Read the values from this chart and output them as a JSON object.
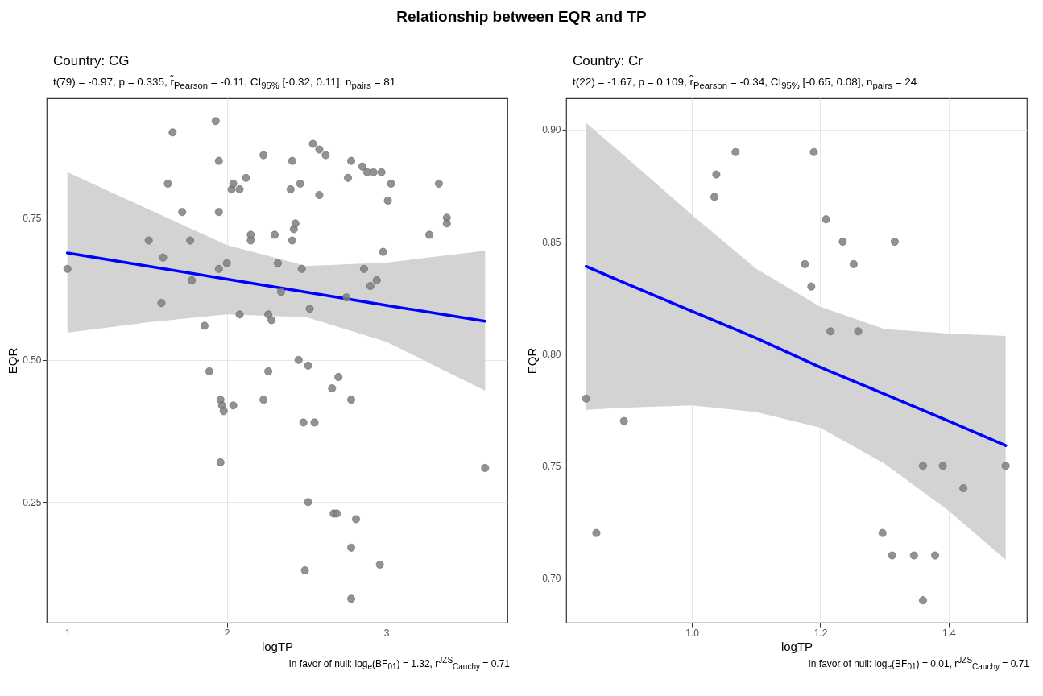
{
  "chart_data": [
    {
      "type": "scatter",
      "title": "Country: CG",
      "subtitle": "t(79) = -0.97, p = 0.335, r̂$_{Pearson}$ = -0.11, CI$_{95%}$ [-0.32, 0.11], n$_{pairs}$ = 81",
      "xlabel": "logTP",
      "ylabel": "EQR",
      "annotations": [
        "Relationship between EQR and TP",
        "In favor of null: log$_{e}$(BF$_{01}$) = 1.32, r$^{JZS}$$_{Cauchy}$ = 0.71"
      ],
      "xlim": [
        0.87,
        3.76
      ],
      "ylim": [
        0.038,
        0.96
      ],
      "xticks": [
        1,
        2,
        3
      ],
      "yticks": [
        {
          "value": 0.25,
          "label": "0.25"
        },
        {
          "value": 0.5,
          "label": "0.50"
        },
        {
          "value": 0.75,
          "label": "0.75"
        }
      ],
      "grid": true,
      "series": [
        {
          "marker": "circle",
          "color": "#808080",
          "x": [
            1.0,
            1.51,
            1.6,
            1.59,
            1.66,
            1.63,
            1.72,
            1.77,
            1.78,
            1.86,
            1.89,
            1.93,
            1.95,
            1.95,
            1.95,
            1.96,
            1.97,
            1.98,
            1.96,
            2.0,
            2.03,
            2.04,
            2.04,
            2.08,
            2.12,
            2.08,
            2.15,
            2.15,
            2.23,
            2.23,
            2.26,
            2.26,
            2.28,
            2.3,
            2.32,
            2.34,
            2.4,
            2.41,
            2.41,
            2.42,
            2.43,
            2.46,
            2.45,
            2.47,
            2.48,
            2.49,
            2.51,
            2.51,
            2.52,
            2.54,
            2.55,
            2.58,
            2.58,
            2.62,
            2.66,
            2.67,
            2.69,
            2.7,
            2.75,
            2.76,
            2.78,
            2.78,
            2.78,
            2.78,
            2.81,
            2.85,
            2.86,
            2.88,
            2.9,
            2.92,
            2.94,
            2.97,
            2.96,
            2.98,
            3.01,
            3.03,
            3.27,
            3.33,
            3.38,
            3.38,
            3.62
          ],
          "values": [
            0.66,
            0.71,
            0.68,
            0.6,
            0.9,
            0.81,
            0.76,
            0.71,
            0.64,
            0.56,
            0.48,
            0.92,
            0.85,
            0.76,
            0.66,
            0.43,
            0.42,
            0.41,
            0.32,
            0.67,
            0.8,
            0.81,
            0.42,
            0.8,
            0.82,
            0.58,
            0.72,
            0.71,
            0.86,
            0.43,
            0.48,
            0.58,
            0.57,
            0.72,
            0.67,
            0.62,
            0.8,
            0.85,
            0.71,
            0.73,
            0.74,
            0.81,
            0.5,
            0.66,
            0.39,
            0.13,
            0.49,
            0.25,
            0.59,
            0.88,
            0.39,
            0.87,
            0.79,
            0.86,
            0.45,
            0.23,
            0.23,
            0.47,
            0.61,
            0.82,
            0.85,
            0.43,
            0.17,
            0.08,
            0.22,
            0.84,
            0.66,
            0.83,
            0.63,
            0.83,
            0.64,
            0.83,
            0.14,
            0.69,
            0.78,
            0.81,
            0.72,
            0.81,
            0.75,
            0.74,
            0.31
          ]
        },
        {
          "type": "line",
          "marker": "none",
          "color": "#0000ff",
          "x": [
            1.0,
            1.5,
            2.0,
            2.5,
            3.0,
            3.62
          ],
          "values": [
            0.688,
            0.665,
            0.642,
            0.619,
            0.596,
            0.568
          ],
          "lower": [
            0.548,
            0.566,
            0.58,
            0.575,
            0.532,
            0.446
          ],
          "upper": [
            0.83,
            0.766,
            0.702,
            0.665,
            0.671,
            0.692
          ]
        }
      ]
    },
    {
      "type": "scatter",
      "title": "Country: Cr",
      "subtitle": "t(22) = -1.67, p = 0.109, r̂$_{Pearson}$ = -0.34, CI$_{95%}$ [-0.65, 0.08], n$_{pairs}$ = 24",
      "xlabel": "logTP",
      "ylabel": "EQR",
      "annotations": [
        "In favor of null: log$_{e}$(BF$_{01}$) = 0.01, r$^{JZS}$$_{Cauchy}$ = 0.71"
      ],
      "xlim": [
        0.804,
        1.522
      ],
      "ylim": [
        0.68,
        0.914
      ],
      "xticks": [
        {
          "value": 1.0,
          "label": "1.0"
        },
        {
          "value": 1.2,
          "label": "1.2"
        },
        {
          "value": 1.4,
          "label": "1.4"
        }
      ],
      "yticks": [
        {
          "value": 0.7,
          "label": "0.70"
        },
        0.75,
        {
          "value": 0.8,
          "label": "0.80"
        },
        0.85,
        {
          "value": 0.9,
          "label": "0.90"
        }
      ],
      "grid": true,
      "series": [
        {
          "marker": "circle",
          "color": "#808080",
          "x": [
            0.835,
            0.851,
            0.894,
            1.035,
            1.038,
            1.068,
            1.176,
            1.186,
            1.19,
            1.209,
            1.216,
            1.235,
            1.252,
            1.259,
            1.316,
            1.297,
            1.312,
            1.346,
            1.36,
            1.36,
            1.379,
            1.391,
            1.423,
            1.489
          ],
          "values": [
            0.78,
            0.72,
            0.77,
            0.87,
            0.88,
            0.89,
            0.84,
            0.83,
            0.89,
            0.86,
            0.81,
            0.85,
            0.84,
            0.81,
            0.85,
            0.72,
            0.71,
            0.71,
            0.69,
            0.75,
            0.71,
            0.75,
            0.74,
            0.75
          ]
        },
        {
          "type": "line",
          "marker": "none",
          "color": "#0000ff",
          "x": [
            0.835,
            0.9,
            1.0,
            1.1,
            1.2,
            1.3,
            1.4,
            1.489
          ],
          "values": [
            0.839,
            0.831,
            0.819,
            0.807,
            0.794,
            0.782,
            0.77,
            0.759
          ],
          "lower": [
            0.775,
            0.776,
            0.777,
            0.774,
            0.767,
            0.751,
            0.73,
            0.708
          ],
          "upper": [
            0.903,
            0.887,
            0.862,
            0.838,
            0.821,
            0.811,
            0.809,
            0.808
          ]
        }
      ]
    }
  ]
}
